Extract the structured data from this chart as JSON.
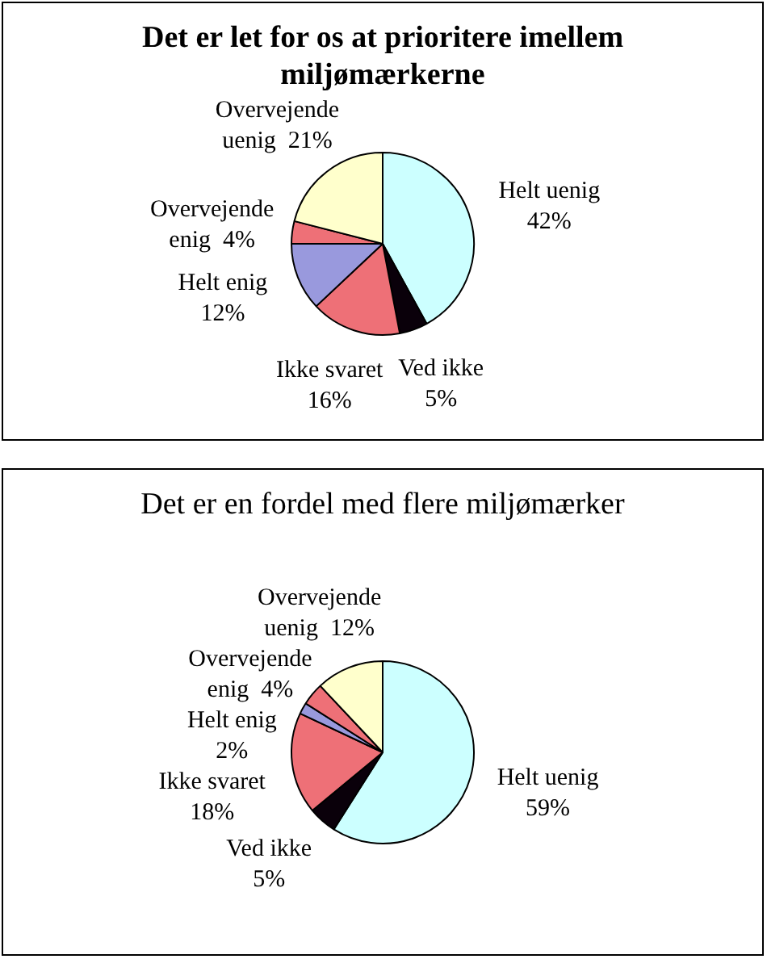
{
  "chart_data": [
    {
      "type": "pie",
      "title": "Det er let for os at prioritere imellem miljømærkerne",
      "categories": [
        "Helt uenig",
        "Ved ikke",
        "Ikke svaret",
        "Helt enig",
        "Overvejende enig",
        "Overvejende uenig"
      ],
      "values": [
        42,
        5,
        16,
        12,
        4,
        21
      ],
      "colors": [
        "#ccffff",
        "#0a000a",
        "#ee7077",
        "#9999dd",
        "#ee7077",
        "#ffffcc"
      ],
      "value_labels": [
        "42%",
        "5%",
        "16%",
        "12%",
        "4%",
        "21%"
      ],
      "legend": false
    },
    {
      "type": "pie",
      "title": "Det er en fordel med flere miljømærker",
      "categories": [
        "Helt uenig",
        "Ved ikke",
        "Ikke svaret",
        "Helt enig",
        "Overvejende enig",
        "Overvejende uenig"
      ],
      "values": [
        59,
        5,
        18,
        2,
        4,
        12
      ],
      "colors": [
        "#ccffff",
        "#0a000a",
        "#ee7077",
        "#9999dd",
        "#ee7077",
        "#ffffcc"
      ],
      "value_labels": [
        "59%",
        "5%",
        "18%",
        "2%",
        "4%",
        "12%"
      ],
      "legend": false
    }
  ]
}
